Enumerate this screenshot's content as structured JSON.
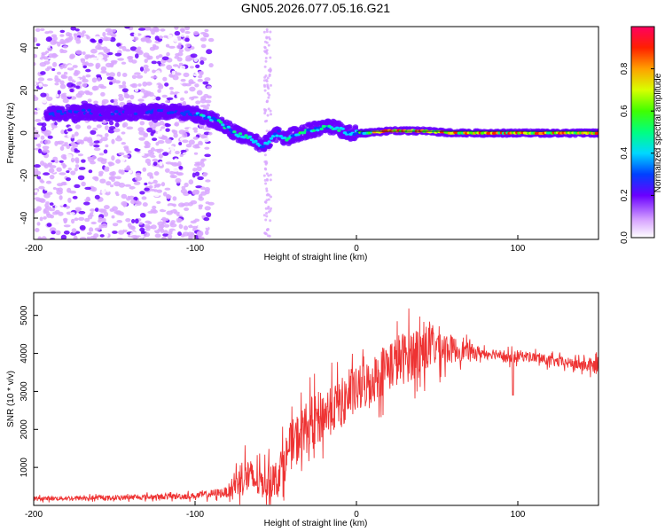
{
  "page": {
    "title": "GN05.2026.077.05.16.G21"
  },
  "chart_data": [
    {
      "id": "spectrogram",
      "type": "heatmap",
      "xlabel": "Height of straight line (km)",
      "ylabel": "Frequency (Hz)",
      "xlim": [
        -200,
        150
      ],
      "ylim": [
        -50,
        50
      ],
      "xticks": [
        -200,
        -100,
        0,
        100
      ],
      "yticks": [
        -40,
        -20,
        0,
        20,
        40
      ],
      "colorbar": {
        "label": "Normalized spectral amplitude",
        "range": [
          0.0,
          1.0
        ],
        "ticks": [
          "0.0",
          "0.2",
          "0.4",
          "0.6",
          "0.8"
        ],
        "tick_values": [
          0.0,
          0.2,
          0.4,
          0.6,
          0.8
        ]
      },
      "signal_trace": {
        "x": [
          -190,
          -170,
          -150,
          -130,
          -110,
          -95,
          -85,
          -75,
          -65,
          -58,
          -52,
          -48,
          -44,
          -40,
          -35,
          -25,
          -15,
          -5,
          5,
          20,
          40,
          60,
          80,
          100,
          120,
          150
        ],
        "y": [
          9,
          10,
          9,
          10,
          10,
          8,
          5,
          0,
          -3,
          -6,
          -2,
          0,
          -3,
          -1,
          0,
          2,
          3,
          0,
          0,
          1,
          1,
          0,
          0,
          0,
          0,
          0
        ]
      },
      "noise_region_x": [
        -200,
        -90
      ]
    },
    {
      "id": "snr",
      "type": "line",
      "xlabel": "Height of straight line (km)",
      "ylabel": "SNR (10 * v/v)",
      "xlim": [
        -200,
        150
      ],
      "ylim": [
        0,
        5600
      ],
      "xticks": [
        -200,
        -100,
        0,
        100
      ],
      "yticks": [
        1000,
        2000,
        3000,
        4000,
        5000
      ],
      "line_color": "#ee3333",
      "series": [
        {
          "name": "SNR",
          "envelope_x": [
            -200,
            -150,
            -100,
            -80,
            -70,
            -60,
            -50,
            -40,
            -30,
            -20,
            -10,
            0,
            10,
            20,
            30,
            40,
            50,
            60,
            70,
            80,
            90,
            95,
            100,
            110,
            120,
            130,
            140,
            150
          ],
          "envelope_y": [
            180,
            200,
            250,
            350,
            800,
            600,
            700,
            1600,
            2100,
            2400,
            2700,
            3000,
            3300,
            3700,
            3900,
            4100,
            4200,
            4100,
            4050,
            4000,
            4000,
            3800,
            3950,
            3900,
            3800,
            3750,
            3700,
            3650
          ],
          "noise_amplitude": [
            80,
            90,
            120,
            200,
            800,
            600,
            700,
            900,
            1000,
            1000,
            900,
            900,
            900,
            1000,
            1000,
            1000,
            800,
            500,
            300,
            200,
            200,
            300,
            200,
            200,
            200,
            200,
            250,
            300
          ]
        }
      ]
    }
  ]
}
